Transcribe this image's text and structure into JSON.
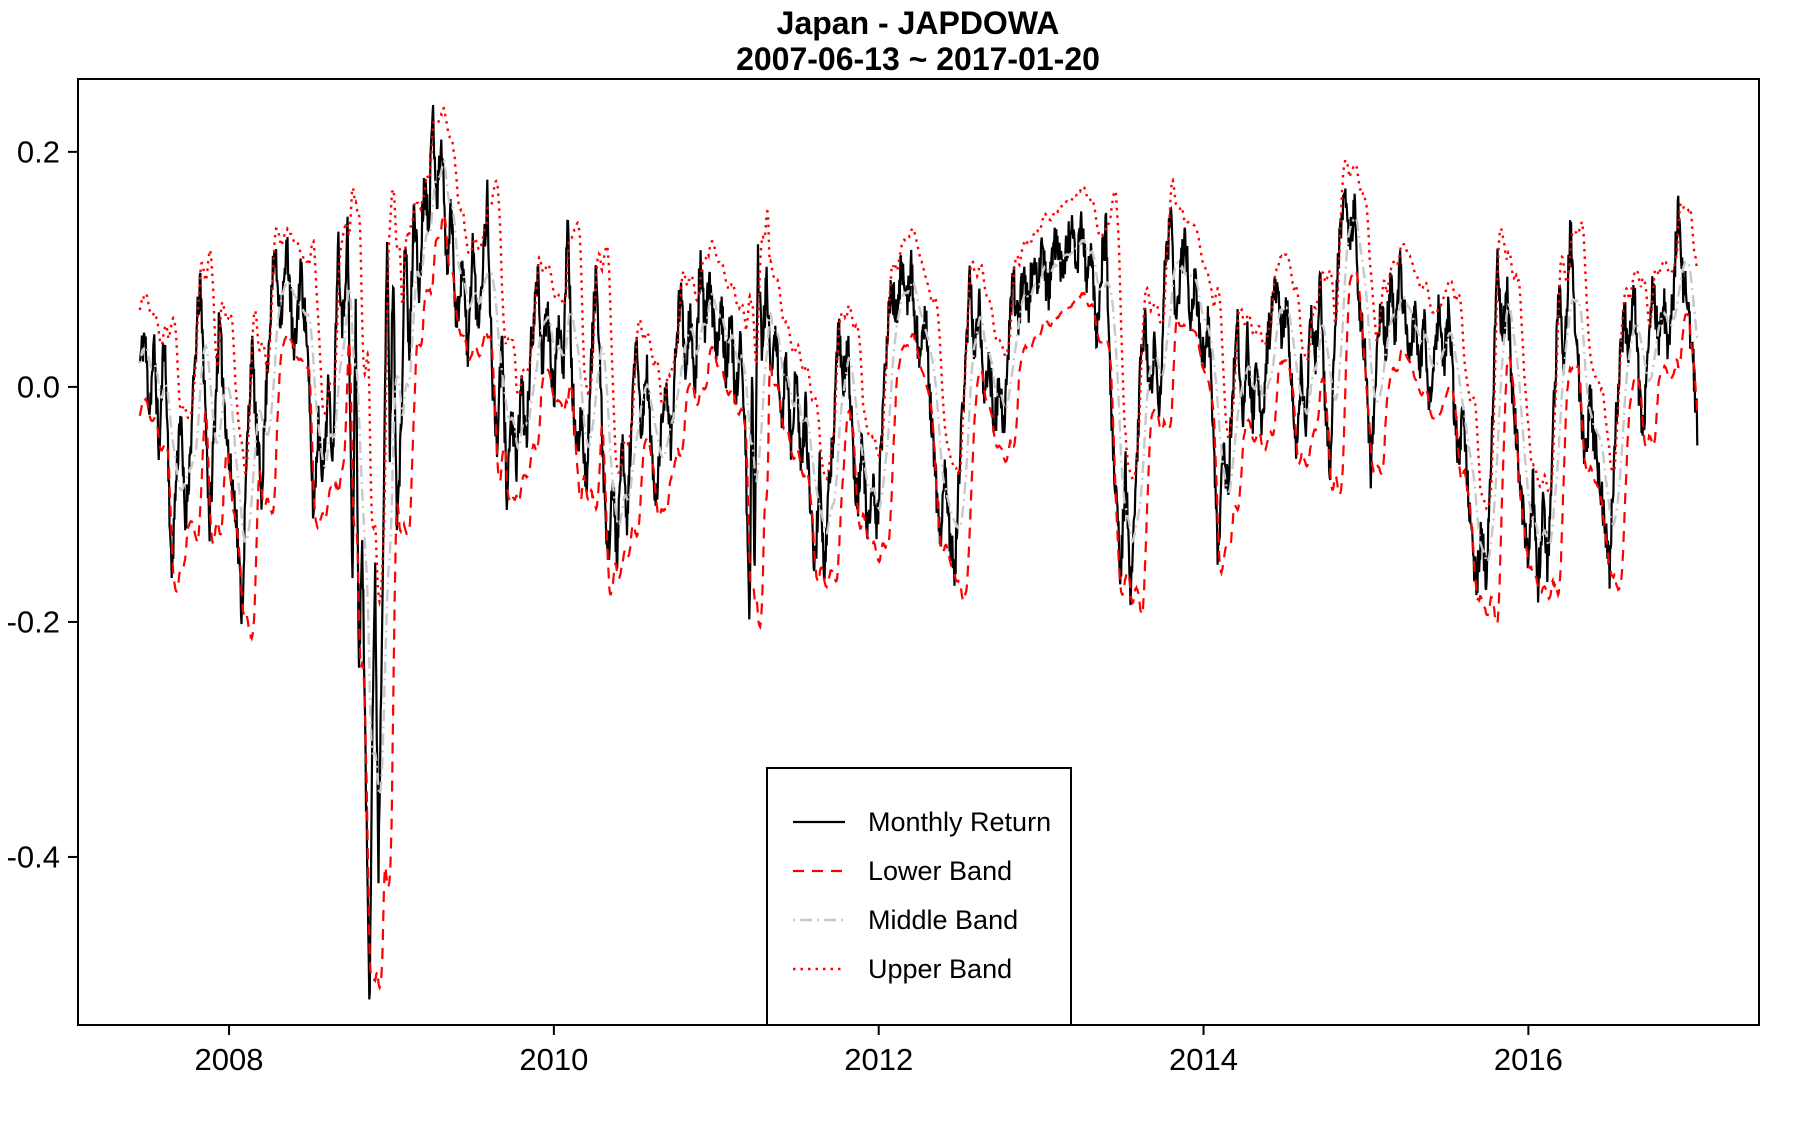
{
  "header": {
    "title": "Japan - JAPDOWA",
    "subtitle": "2007-06-13 ~ 2017-01-20"
  },
  "legend": {
    "items": [
      {
        "label": "Monthly Return",
        "style": "solid-black"
      },
      {
        "label": "Lower Band",
        "style": "dashed-red"
      },
      {
        "label": "Middle Band",
        "style": "dashdot-gray"
      },
      {
        "label": "Upper Band",
        "style": "dotted-red"
      }
    ],
    "position": "inside-bottom-center"
  },
  "colors": {
    "monthly_return": "#000000",
    "lower_band": "#ff0000",
    "middle_band": "#c8c8c8",
    "upper_band": "#ff0000",
    "axis": "#000000",
    "background": "#ffffff"
  },
  "chart_data": {
    "type": "line",
    "title": "Japan - JAPDOWA",
    "subtitle": "2007-06-13 ~ 2017-01-20",
    "xlabel": "",
    "ylabel": "",
    "grid": false,
    "x_ticks": [
      {
        "value": 2008,
        "label": "2008"
      },
      {
        "value": 2010,
        "label": "2010"
      },
      {
        "value": 2012,
        "label": "2012"
      },
      {
        "value": 2014,
        "label": "2014"
      },
      {
        "value": 2016,
        "label": "2016"
      }
    ],
    "y_ticks": [
      {
        "value": 0.2,
        "label": "0.2"
      },
      {
        "value": 0.0,
        "label": "0.0"
      },
      {
        "value": -0.2,
        "label": "-0.2"
      },
      {
        "value": -0.4,
        "label": "-0.4"
      }
    ],
    "x_domain": [
      2007.07,
      2017.42
    ],
    "y_domain": [
      -0.543,
      0.262
    ],
    "x_range_data": [
      2007.45,
      2017.04
    ],
    "series": [
      {
        "name": "Monthly Return",
        "role": "price",
        "kind": "anchors"
      },
      {
        "name": "Lower Band",
        "role": "band",
        "kind": "derived",
        "formula": "middle - k*rolling_std"
      },
      {
        "name": "Middle Band",
        "role": "band",
        "kind": "derived",
        "formula": "rolling_mean"
      },
      {
        "name": "Upper Band",
        "role": "band",
        "kind": "derived",
        "formula": "middle + k*rolling_std"
      }
    ],
    "derivation": {
      "samples_per_year": 300,
      "ma_window_samples": 26,
      "std_k": 1.6,
      "band_floor": 0.045,
      "noise_amplitude": 0.018,
      "noise_seed": 11
    },
    "monthly_return_anchors": [
      [
        2007.45,
        0.02
      ],
      [
        2007.48,
        0.045
      ],
      [
        2007.51,
        -0.02
      ],
      [
        2007.54,
        0.035
      ],
      [
        2007.57,
        -0.06
      ],
      [
        2007.6,
        0.05
      ],
      [
        2007.62,
        -0.03
      ],
      [
        2007.645,
        -0.165
      ],
      [
        2007.67,
        -0.09
      ],
      [
        2007.7,
        -0.02
      ],
      [
        2007.73,
        -0.115
      ],
      [
        2007.76,
        -0.06
      ],
      [
        2007.79,
        0.02
      ],
      [
        2007.82,
        0.09
      ],
      [
        2007.85,
        0.0
      ],
      [
        2007.88,
        -0.12
      ],
      [
        2007.91,
        -0.03
      ],
      [
        2007.94,
        0.055
      ],
      [
        2007.97,
        -0.01
      ],
      [
        2008.0,
        -0.065
      ],
      [
        2008.04,
        -0.1
      ],
      [
        2008.08,
        -0.195
      ],
      [
        2008.11,
        -0.055
      ],
      [
        2008.14,
        0.035
      ],
      [
        2008.17,
        -0.04
      ],
      [
        2008.2,
        -0.09
      ],
      [
        2008.24,
        0.03
      ],
      [
        2008.28,
        0.115
      ],
      [
        2008.32,
        0.06
      ],
      [
        2008.36,
        0.12
      ],
      [
        2008.4,
        0.02
      ],
      [
        2008.44,
        0.1
      ],
      [
        2008.48,
        0.04
      ],
      [
        2008.52,
        -0.11
      ],
      [
        2008.55,
        -0.03
      ],
      [
        2008.58,
        -0.075
      ],
      [
        2008.61,
        0.0
      ],
      [
        2008.64,
        -0.06
      ],
      [
        2008.67,
        0.13
      ],
      [
        2008.7,
        0.05
      ],
      [
        2008.73,
        0.135
      ],
      [
        2008.76,
        -0.17
      ],
      [
        2008.78,
        0.07
      ],
      [
        2008.8,
        -0.25
      ],
      [
        2008.82,
        -0.12
      ],
      [
        2008.84,
        -0.32
      ],
      [
        2008.865,
        -0.52
      ],
      [
        2008.885,
        -0.26
      ],
      [
        2008.9,
        -0.165
      ],
      [
        2008.92,
        -0.41
      ],
      [
        2008.94,
        -0.22
      ],
      [
        2008.96,
        0.0
      ],
      [
        2008.975,
        0.13
      ],
      [
        2008.99,
        -0.06
      ],
      [
        2009.01,
        0.1
      ],
      [
        2009.035,
        -0.12
      ],
      [
        2009.06,
        -0.04
      ],
      [
        2009.085,
        0.135
      ],
      [
        2009.11,
        0.02
      ],
      [
        2009.14,
        0.16
      ],
      [
        2009.17,
        0.075
      ],
      [
        2009.2,
        0.175
      ],
      [
        2009.23,
        0.145
      ],
      [
        2009.255,
        0.235
      ],
      [
        2009.28,
        0.16
      ],
      [
        2009.31,
        0.21
      ],
      [
        2009.34,
        0.1
      ],
      [
        2009.37,
        0.155
      ],
      [
        2009.4,
        0.05
      ],
      [
        2009.44,
        0.11
      ],
      [
        2009.47,
        0.02
      ],
      [
        2009.5,
        0.125
      ],
      [
        2009.53,
        0.05
      ],
      [
        2009.56,
        0.1
      ],
      [
        2009.59,
        0.16
      ],
      [
        2009.62,
        0.01
      ],
      [
        2009.65,
        -0.05
      ],
      [
        2009.68,
        0.04
      ],
      [
        2009.71,
        -0.09
      ],
      [
        2009.74,
        -0.02
      ],
      [
        2009.77,
        -0.075
      ],
      [
        2009.8,
        0.01
      ],
      [
        2009.83,
        -0.05
      ],
      [
        2009.86,
        0.035
      ],
      [
        2009.9,
        0.095
      ],
      [
        2009.93,
        0.02
      ],
      [
        2009.96,
        0.065
      ],
      [
        2010.0,
        -0.01
      ],
      [
        2010.03,
        0.06
      ],
      [
        2010.06,
        0.02
      ],
      [
        2010.085,
        0.16
      ],
      [
        2010.11,
        0.01
      ],
      [
        2010.14,
        -0.065
      ],
      [
        2010.17,
        -0.02
      ],
      [
        2010.2,
        -0.085
      ],
      [
        2010.23,
        0.02
      ],
      [
        2010.26,
        0.1
      ],
      [
        2010.3,
        -0.05
      ],
      [
        2010.33,
        -0.155
      ],
      [
        2010.36,
        -0.08
      ],
      [
        2010.39,
        -0.145
      ],
      [
        2010.42,
        -0.05
      ],
      [
        2010.45,
        -0.12
      ],
      [
        2010.48,
        -0.02
      ],
      [
        2010.51,
        0.035
      ],
      [
        2010.54,
        -0.045
      ],
      [
        2010.57,
        0.02
      ],
      [
        2010.6,
        -0.055
      ],
      [
        2010.63,
        -0.1
      ],
      [
        2010.66,
        -0.04
      ],
      [
        2010.69,
        0.01
      ],
      [
        2010.72,
        -0.06
      ],
      [
        2010.75,
        0.03
      ],
      [
        2010.78,
        0.085
      ],
      [
        2010.81,
        0.02
      ],
      [
        2010.84,
        0.065
      ],
      [
        2010.87,
        -0.01
      ],
      [
        2010.9,
        0.11
      ],
      [
        2010.93,
        0.05
      ],
      [
        2010.96,
        0.09
      ],
      [
        2011.0,
        0.025
      ],
      [
        2011.03,
        0.075
      ],
      [
        2011.06,
        0.015
      ],
      [
        2011.09,
        0.06
      ],
      [
        2011.12,
        -0.02
      ],
      [
        2011.15,
        0.05
      ],
      [
        2011.18,
        -0.05
      ],
      [
        2011.205,
        -0.21
      ],
      [
        2011.22,
        0.02
      ],
      [
        2011.235,
        -0.16
      ],
      [
        2011.255,
        0.11
      ],
      [
        2011.28,
        0.04
      ],
      [
        2011.31,
        0.085
      ],
      [
        2011.34,
        0.0
      ],
      [
        2011.37,
        0.05
      ],
      [
        2011.4,
        -0.035
      ],
      [
        2011.43,
        0.025
      ],
      [
        2011.46,
        -0.05
      ],
      [
        2011.49,
        0.01
      ],
      [
        2011.52,
        -0.065
      ],
      [
        2011.55,
        -0.02
      ],
      [
        2011.58,
        -0.11
      ],
      [
        2011.61,
        -0.15
      ],
      [
        2011.64,
        -0.06
      ],
      [
        2011.665,
        -0.17
      ],
      [
        2011.69,
        -0.09
      ],
      [
        2011.72,
        -0.045
      ],
      [
        2011.75,
        0.055
      ],
      [
        2011.78,
        0.0
      ],
      [
        2011.81,
        0.04
      ],
      [
        2011.84,
        -0.055
      ],
      [
        2011.87,
        -0.1
      ],
      [
        2011.9,
        -0.045
      ],
      [
        2011.93,
        -0.13
      ],
      [
        2011.96,
        -0.075
      ],
      [
        2011.99,
        -0.12
      ],
      [
        2012.02,
        -0.04
      ],
      [
        2012.05,
        0.04
      ],
      [
        2012.08,
        0.09
      ],
      [
        2012.11,
        0.055
      ],
      [
        2012.14,
        0.105
      ],
      [
        2012.17,
        0.065
      ],
      [
        2012.2,
        0.1
      ],
      [
        2012.23,
        0.05
      ],
      [
        2012.26,
        0.02
      ],
      [
        2012.29,
        0.06
      ],
      [
        2012.32,
        -0.02
      ],
      [
        2012.35,
        -0.08
      ],
      [
        2012.38,
        -0.13
      ],
      [
        2012.41,
        -0.07
      ],
      [
        2012.44,
        -0.13
      ],
      [
        2012.47,
        -0.155
      ],
      [
        2012.5,
        -0.06
      ],
      [
        2012.53,
        0.01
      ],
      [
        2012.56,
        0.09
      ],
      [
        2012.59,
        0.03
      ],
      [
        2012.62,
        0.075
      ],
      [
        2012.65,
        -0.015
      ],
      [
        2012.68,
        0.035
      ],
      [
        2012.71,
        -0.045
      ],
      [
        2012.74,
        0.01
      ],
      [
        2012.77,
        -0.035
      ],
      [
        2012.8,
        0.04
      ],
      [
        2012.83,
        0.09
      ],
      [
        2012.86,
        0.05
      ],
      [
        2012.89,
        0.1
      ],
      [
        2012.92,
        0.065
      ],
      [
        2012.95,
        0.115
      ],
      [
        2012.98,
        0.08
      ],
      [
        2013.01,
        0.12
      ],
      [
        2013.04,
        0.075
      ],
      [
        2013.07,
        0.11
      ],
      [
        2013.1,
        0.135
      ],
      [
        2013.13,
        0.09
      ],
      [
        2013.16,
        0.12
      ],
      [
        2013.19,
        0.135
      ],
      [
        2013.22,
        0.1
      ],
      [
        2013.25,
        0.14
      ],
      [
        2013.28,
        0.09
      ],
      [
        2013.31,
        0.125
      ],
      [
        2013.34,
        0.04
      ],
      [
        2013.37,
        0.1
      ],
      [
        2013.4,
        0.135
      ],
      [
        2013.43,
        -0.02
      ],
      [
        2013.46,
        -0.09
      ],
      [
        2013.49,
        -0.16
      ],
      [
        2013.52,
        -0.07
      ],
      [
        2013.55,
        -0.17
      ],
      [
        2013.58,
        -0.1
      ],
      [
        2013.61,
        0.01
      ],
      [
        2013.64,
        0.065
      ],
      [
        2013.67,
        -0.015
      ],
      [
        2013.7,
        0.04
      ],
      [
        2013.73,
        -0.03
      ],
      [
        2013.76,
        0.09
      ],
      [
        2013.8,
        0.15
      ],
      [
        2013.83,
        0.05
      ],
      [
        2013.86,
        0.1
      ],
      [
        2013.89,
        0.13
      ],
      [
        2013.92,
        0.06
      ],
      [
        2013.95,
        0.09
      ],
      [
        2014.0,
        0.02
      ],
      [
        2014.03,
        0.06
      ],
      [
        2014.06,
        -0.04
      ],
      [
        2014.09,
        -0.145
      ],
      [
        2014.12,
        -0.05
      ],
      [
        2014.15,
        -0.09
      ],
      [
        2014.18,
        0.0
      ],
      [
        2014.21,
        0.05
      ],
      [
        2014.24,
        -0.025
      ],
      [
        2014.27,
        0.04
      ],
      [
        2014.3,
        -0.03
      ],
      [
        2014.33,
        0.02
      ],
      [
        2014.36,
        -0.045
      ],
      [
        2014.39,
        0.03
      ],
      [
        2014.42,
        0.065
      ],
      [
        2014.45,
        0.085
      ],
      [
        2014.48,
        0.04
      ],
      [
        2014.51,
        0.075
      ],
      [
        2014.54,
        0.01
      ],
      [
        2014.57,
        -0.06
      ],
      [
        2014.6,
        0.02
      ],
      [
        2014.63,
        -0.035
      ],
      [
        2014.66,
        0.06
      ],
      [
        2014.69,
        0.025
      ],
      [
        2014.72,
        0.09
      ],
      [
        2014.75,
        -0.02
      ],
      [
        2014.78,
        -0.075
      ],
      [
        2014.81,
        0.06
      ],
      [
        2014.84,
        0.13
      ],
      [
        2014.87,
        0.178
      ],
      [
        2014.9,
        0.12
      ],
      [
        2014.93,
        0.15
      ],
      [
        2014.96,
        0.065
      ],
      [
        2015.0,
        0.02
      ],
      [
        2015.03,
        -0.07
      ],
      [
        2015.06,
        0.01
      ],
      [
        2015.09,
        0.075
      ],
      [
        2015.12,
        0.03
      ],
      [
        2015.15,
        0.09
      ],
      [
        2015.18,
        0.045
      ],
      [
        2015.21,
        0.1
      ],
      [
        2015.24,
        0.06
      ],
      [
        2015.27,
        0.02
      ],
      [
        2015.3,
        0.065
      ],
      [
        2015.33,
        0.01
      ],
      [
        2015.36,
        0.05
      ],
      [
        2015.39,
        -0.02
      ],
      [
        2015.42,
        0.035
      ],
      [
        2015.45,
        0.065
      ],
      [
        2015.48,
        0.02
      ],
      [
        2015.51,
        0.065
      ],
      [
        2015.54,
        -0.01
      ],
      [
        2015.57,
        -0.06
      ],
      [
        2015.6,
        -0.02
      ],
      [
        2015.63,
        -0.09
      ],
      [
        2015.66,
        -0.145
      ],
      [
        2015.68,
        -0.17
      ],
      [
        2015.71,
        -0.12
      ],
      [
        2015.74,
        -0.17
      ],
      [
        2015.77,
        -0.06
      ],
      [
        2015.81,
        0.105
      ],
      [
        2015.84,
        0.04
      ],
      [
        2015.87,
        0.08
      ],
      [
        2015.9,
        0.0
      ],
      [
        2015.93,
        -0.05
      ],
      [
        2015.96,
        -0.1
      ],
      [
        2016.0,
        -0.15
      ],
      [
        2016.03,
        -0.08
      ],
      [
        2016.06,
        -0.17
      ],
      [
        2016.09,
        -0.1
      ],
      [
        2016.12,
        -0.155
      ],
      [
        2016.15,
        -0.04
      ],
      [
        2016.19,
        0.085
      ],
      [
        2016.22,
        0.02
      ],
      [
        2016.26,
        0.135
      ],
      [
        2016.29,
        0.05
      ],
      [
        2016.32,
        -0.01
      ],
      [
        2016.35,
        -0.065
      ],
      [
        2016.38,
        -0.01
      ],
      [
        2016.41,
        -0.05
      ],
      [
        2016.44,
        -0.08
      ],
      [
        2016.47,
        -0.115
      ],
      [
        2016.5,
        -0.155
      ],
      [
        2016.53,
        -0.05
      ],
      [
        2016.56,
        0.01
      ],
      [
        2016.59,
        0.065
      ],
      [
        2016.62,
        0.03
      ],
      [
        2016.65,
        0.09
      ],
      [
        2016.68,
        0.0
      ],
      [
        2016.71,
        -0.04
      ],
      [
        2016.74,
        0.05
      ],
      [
        2016.77,
        0.09
      ],
      [
        2016.8,
        0.04
      ],
      [
        2016.83,
        0.075
      ],
      [
        2016.86,
        0.035
      ],
      [
        2016.89,
        0.07
      ],
      [
        2016.92,
        0.155
      ],
      [
        2016.95,
        0.09
      ],
      [
        2016.98,
        0.075
      ],
      [
        2017.01,
        0.03
      ],
      [
        2017.04,
        -0.035
      ]
    ]
  }
}
